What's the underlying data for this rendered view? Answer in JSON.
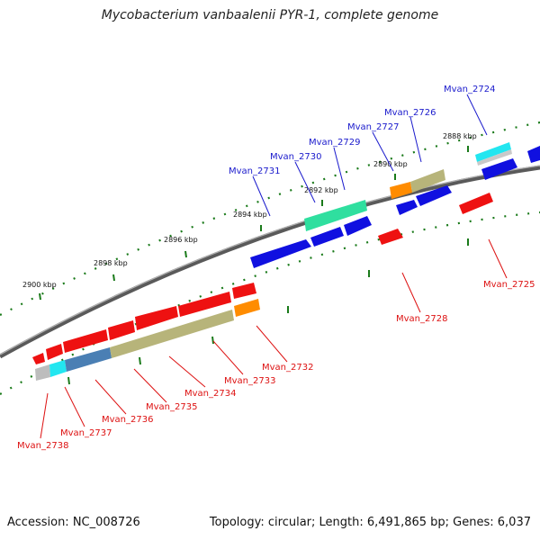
{
  "title": "Mycobacterium vanbaalenii PYR-1, complete genome",
  "footer": {
    "accession": "Accession: NC_008726",
    "topology": "Topology: circular; Length: 6,491,865 bp; Genes: 6,037"
  },
  "kbp_ticks": [
    "2888 kbp",
    "2890 kbp",
    "2892 kbp",
    "2894 kbp",
    "2896 kbp",
    "2898 kbp",
    "2900 kbp"
  ],
  "forward_genes": [
    "Mvan_2724",
    "Mvan_2726",
    "Mvan_2727",
    "Mvan_2729",
    "Mvan_2730",
    "Mvan_2731"
  ],
  "reverse_genes": [
    "Mvan_2725",
    "Mvan_2728",
    "Mvan_2732",
    "Mvan_2733",
    "Mvan_2734",
    "Mvan_2735",
    "Mvan_2736",
    "Mvan_2737",
    "Mvan_2738"
  ],
  "colors": {
    "forward_label": "#1a1acc",
    "reverse_label": "#dd1111",
    "forward_cds": "#1010e0",
    "reverse_cds": "#ee1111",
    "backbone": "#777777",
    "ticks": "#1a7a1a"
  }
}
